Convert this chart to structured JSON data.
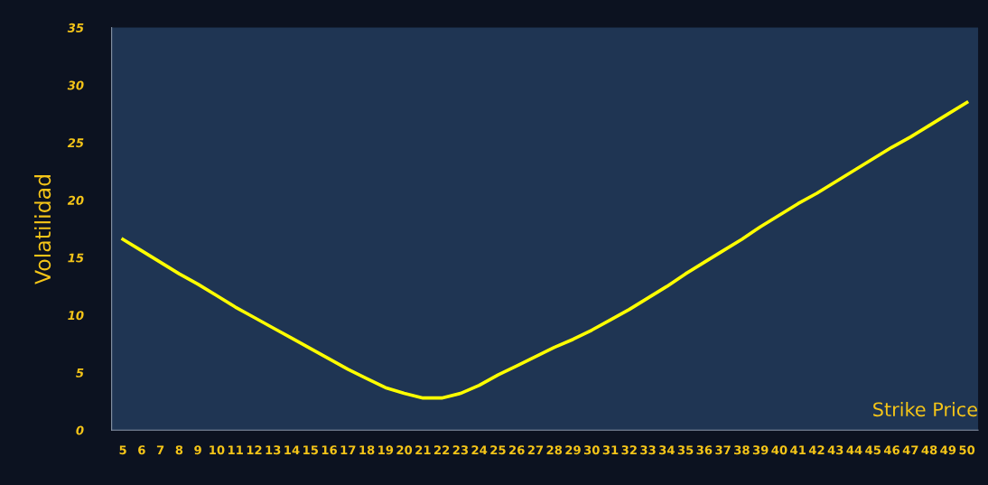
{
  "chart_data": {
    "type": "line",
    "xlabel": "Strike Price",
    "ylabel": "Volatilidad",
    "categories": [
      "5",
      "6",
      "7",
      "8",
      "9",
      "10",
      "11",
      "12",
      "13",
      "14",
      "15",
      "16",
      "17",
      "18",
      "19",
      "20",
      "21",
      "22",
      "23",
      "24",
      "25",
      "26",
      "27",
      "28",
      "29",
      "30",
      "31",
      "32",
      "33",
      "34",
      "35",
      "36",
      "37",
      "38",
      "39",
      "40",
      "41",
      "42",
      "43",
      "44",
      "45",
      "46",
      "47",
      "48",
      "49",
      "50"
    ],
    "series": [
      {
        "color": "#ffff00",
        "values": [
          16.6,
          15.6,
          14.6,
          13.6,
          12.7,
          11.7,
          10.7,
          9.8,
          8.9,
          8.0,
          7.1,
          6.2,
          5.3,
          4.5,
          3.7,
          3.2,
          2.8,
          2.8,
          3.2,
          3.9,
          4.8,
          5.6,
          6.4,
          7.2,
          7.9,
          8.7,
          9.6,
          10.5,
          11.5,
          12.5,
          13.6,
          14.6,
          15.6,
          16.6,
          17.7,
          18.7,
          19.7,
          20.6,
          21.6,
          22.6,
          23.6,
          24.6,
          25.5,
          26.5,
          27.5,
          28.5
        ]
      }
    ],
    "ylim": [
      0,
      35
    ],
    "yticks": [
      0,
      5,
      10,
      15,
      20,
      25,
      30,
      35
    ],
    "grid": false,
    "marker": "none",
    "line_style": "solid"
  }
}
